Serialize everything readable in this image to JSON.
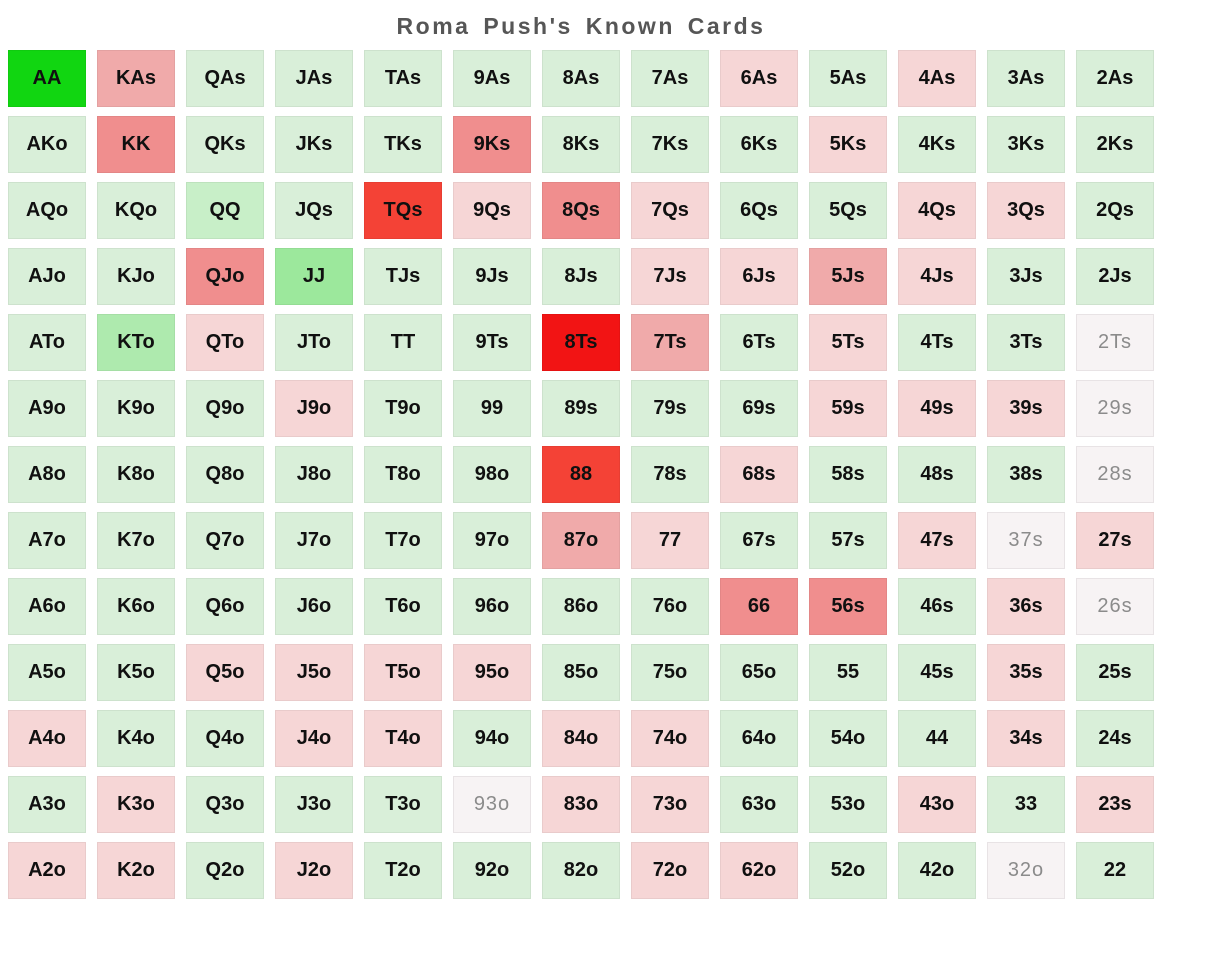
{
  "chart_data": {
    "type": "heatmap",
    "title": "Roma Push's Known Cards",
    "rows": 13,
    "cols": 13,
    "palette": {
      "g4": "#11d611",
      "g3": "#9ce89c",
      "g2b": "#aeeaae",
      "g2a": "#c8efc8",
      "g1": "#d9efd9",
      "r1": "#f6d6d6",
      "r2": "#f0aaaa",
      "r3": "#f08e8e",
      "r4": "#f44236",
      "r5": "#f21414",
      "w": "#f7f3f4"
    },
    "text_colors": {
      "default": "#101010",
      "muted": "#8b8b8b",
      "title": "#565656"
    },
    "cells": [
      [
        [
          "AA",
          "g4"
        ],
        [
          "KAs",
          "r2"
        ],
        [
          "QAs",
          "g1"
        ],
        [
          "JAs",
          "g1"
        ],
        [
          "TAs",
          "g1"
        ],
        [
          "9As",
          "g1"
        ],
        [
          "8As",
          "g1"
        ],
        [
          "7As",
          "g1"
        ],
        [
          "6As",
          "r1"
        ],
        [
          "5As",
          "g1"
        ],
        [
          "4As",
          "r1"
        ],
        [
          "3As",
          "g1"
        ],
        [
          "2As",
          "g1"
        ]
      ],
      [
        [
          "AKo",
          "g1"
        ],
        [
          "KK",
          "r3"
        ],
        [
          "QKs",
          "g1"
        ],
        [
          "JKs",
          "g1"
        ],
        [
          "TKs",
          "g1"
        ],
        [
          "9Ks",
          "r3"
        ],
        [
          "8Ks",
          "g1"
        ],
        [
          "7Ks",
          "g1"
        ],
        [
          "6Ks",
          "g1"
        ],
        [
          "5Ks",
          "r1"
        ],
        [
          "4Ks",
          "g1"
        ],
        [
          "3Ks",
          "g1"
        ],
        [
          "2Ks",
          "g1"
        ]
      ],
      [
        [
          "AQo",
          "g1"
        ],
        [
          "KQo",
          "g1"
        ],
        [
          "QQ",
          "g2a"
        ],
        [
          "JQs",
          "g1"
        ],
        [
          "TQs",
          "r4"
        ],
        [
          "9Qs",
          "r1"
        ],
        [
          "8Qs",
          "r3"
        ],
        [
          "7Qs",
          "r1"
        ],
        [
          "6Qs",
          "g1"
        ],
        [
          "5Qs",
          "g1"
        ],
        [
          "4Qs",
          "r1"
        ],
        [
          "3Qs",
          "r1"
        ],
        [
          "2Qs",
          "g1"
        ]
      ],
      [
        [
          "AJo",
          "g1"
        ],
        [
          "KJo",
          "g1"
        ],
        [
          "QJo",
          "r3"
        ],
        [
          "JJ",
          "g3"
        ],
        [
          "TJs",
          "g1"
        ],
        [
          "9Js",
          "g1"
        ],
        [
          "8Js",
          "g1"
        ],
        [
          "7Js",
          "r1"
        ],
        [
          "6Js",
          "r1"
        ],
        [
          "5Js",
          "r2"
        ],
        [
          "4Js",
          "r1"
        ],
        [
          "3Js",
          "g1"
        ],
        [
          "2Js",
          "g1"
        ]
      ],
      [
        [
          "ATo",
          "g1"
        ],
        [
          "KTo",
          "g2b"
        ],
        [
          "QTo",
          "r1"
        ],
        [
          "JTo",
          "g1"
        ],
        [
          "TT",
          "g1"
        ],
        [
          "9Ts",
          "g1"
        ],
        [
          "8Ts",
          "r5"
        ],
        [
          "7Ts",
          "r2"
        ],
        [
          "6Ts",
          "g1"
        ],
        [
          "5Ts",
          "r1"
        ],
        [
          "4Ts",
          "g1"
        ],
        [
          "3Ts",
          "g1"
        ],
        [
          "2Ts",
          "w"
        ]
      ],
      [
        [
          "A9o",
          "g1"
        ],
        [
          "K9o",
          "g1"
        ],
        [
          "Q9o",
          "g1"
        ],
        [
          "J9o",
          "r1"
        ],
        [
          "T9o",
          "g1"
        ],
        [
          "99",
          "g1"
        ],
        [
          "89s",
          "g1"
        ],
        [
          "79s",
          "g1"
        ],
        [
          "69s",
          "g1"
        ],
        [
          "59s",
          "r1"
        ],
        [
          "49s",
          "r1"
        ],
        [
          "39s",
          "r1"
        ],
        [
          "29s",
          "w"
        ]
      ],
      [
        [
          "A8o",
          "g1"
        ],
        [
          "K8o",
          "g1"
        ],
        [
          "Q8o",
          "g1"
        ],
        [
          "J8o",
          "g1"
        ],
        [
          "T8o",
          "g1"
        ],
        [
          "98o",
          "g1"
        ],
        [
          "88",
          "r4"
        ],
        [
          "78s",
          "g1"
        ],
        [
          "68s",
          "r1"
        ],
        [
          "58s",
          "g1"
        ],
        [
          "48s",
          "g1"
        ],
        [
          "38s",
          "g1"
        ],
        [
          "28s",
          "w"
        ]
      ],
      [
        [
          "A7o",
          "g1"
        ],
        [
          "K7o",
          "g1"
        ],
        [
          "Q7o",
          "g1"
        ],
        [
          "J7o",
          "g1"
        ],
        [
          "T7o",
          "g1"
        ],
        [
          "97o",
          "g1"
        ],
        [
          "87o",
          "r2"
        ],
        [
          "77",
          "r1"
        ],
        [
          "67s",
          "g1"
        ],
        [
          "57s",
          "g1"
        ],
        [
          "47s",
          "r1"
        ],
        [
          "37s",
          "w"
        ],
        [
          "27s",
          "r1"
        ]
      ],
      [
        [
          "A6o",
          "g1"
        ],
        [
          "K6o",
          "g1"
        ],
        [
          "Q6o",
          "g1"
        ],
        [
          "J6o",
          "g1"
        ],
        [
          "T6o",
          "g1"
        ],
        [
          "96o",
          "g1"
        ],
        [
          "86o",
          "g1"
        ],
        [
          "76o",
          "g1"
        ],
        [
          "66",
          "r3"
        ],
        [
          "56s",
          "r3"
        ],
        [
          "46s",
          "g1"
        ],
        [
          "36s",
          "r1"
        ],
        [
          "26s",
          "w"
        ]
      ],
      [
        [
          "A5o",
          "g1"
        ],
        [
          "K5o",
          "g1"
        ],
        [
          "Q5o",
          "r1"
        ],
        [
          "J5o",
          "r1"
        ],
        [
          "T5o",
          "r1"
        ],
        [
          "95o",
          "r1"
        ],
        [
          "85o",
          "g1"
        ],
        [
          "75o",
          "g1"
        ],
        [
          "65o",
          "g1"
        ],
        [
          "55",
          "g1"
        ],
        [
          "45s",
          "g1"
        ],
        [
          "35s",
          "r1"
        ],
        [
          "25s",
          "g1"
        ]
      ],
      [
        [
          "A4o",
          "r1"
        ],
        [
          "K4o",
          "g1"
        ],
        [
          "Q4o",
          "g1"
        ],
        [
          "J4o",
          "r1"
        ],
        [
          "T4o",
          "r1"
        ],
        [
          "94o",
          "g1"
        ],
        [
          "84o",
          "r1"
        ],
        [
          "74o",
          "r1"
        ],
        [
          "64o",
          "g1"
        ],
        [
          "54o",
          "g1"
        ],
        [
          "44",
          "g1"
        ],
        [
          "34s",
          "r1"
        ],
        [
          "24s",
          "g1"
        ]
      ],
      [
        [
          "A3o",
          "g1"
        ],
        [
          "K3o",
          "r1"
        ],
        [
          "Q3o",
          "g1"
        ],
        [
          "J3o",
          "g1"
        ],
        [
          "T3o",
          "g1"
        ],
        [
          "93o",
          "w"
        ],
        [
          "83o",
          "r1"
        ],
        [
          "73o",
          "r1"
        ],
        [
          "63o",
          "g1"
        ],
        [
          "53o",
          "g1"
        ],
        [
          "43o",
          "r1"
        ],
        [
          "33",
          "g1"
        ],
        [
          "23s",
          "r1"
        ]
      ],
      [
        [
          "A2o",
          "r1"
        ],
        [
          "K2o",
          "r1"
        ],
        [
          "Q2o",
          "g1"
        ],
        [
          "J2o",
          "r1"
        ],
        [
          "T2o",
          "g1"
        ],
        [
          "92o",
          "g1"
        ],
        [
          "82o",
          "g1"
        ],
        [
          "72o",
          "r1"
        ],
        [
          "62o",
          "r1"
        ],
        [
          "52o",
          "g1"
        ],
        [
          "42o",
          "g1"
        ],
        [
          "32o",
          "w"
        ],
        [
          "22",
          "g1"
        ]
      ]
    ]
  }
}
